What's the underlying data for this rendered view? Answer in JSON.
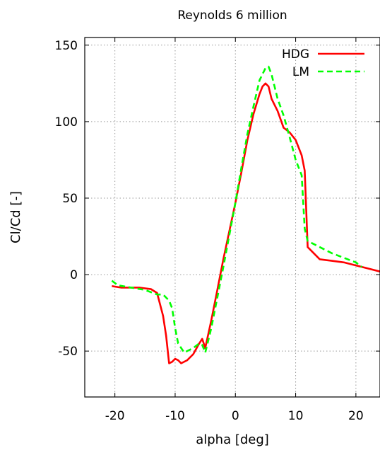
{
  "chart_data": {
    "type": "line",
    "title": "Reynolds 6 million",
    "xlabel": "alpha [deg]",
    "ylabel": "Cl/Cd [-]",
    "xlim": [
      -25,
      24
    ],
    "ylim": [
      -80,
      155
    ],
    "xticks": [
      -20,
      -10,
      0,
      10,
      20
    ],
    "yticks": [
      -50,
      0,
      50,
      100,
      150
    ],
    "grid": true,
    "legend_position": "top-right",
    "series": [
      {
        "name": "HDG",
        "color": "#ff0000",
        "dash": "solid",
        "x": [
          -20.5,
          -19,
          -16,
          -14,
          -13,
          -12,
          -11.5,
          -11,
          -10.5,
          -10,
          -9.5,
          -9,
          -8,
          -7,
          -6,
          -5.5,
          -5,
          -4,
          -3,
          -2,
          0,
          1,
          2,
          3,
          4,
          4.5,
          5,
          5.5,
          6,
          7,
          8,
          9,
          10,
          11,
          11.5,
          12,
          14,
          16,
          18,
          20,
          22,
          24
        ],
        "y": [
          -7.5,
          -8.5,
          -8.5,
          -9.5,
          -12,
          -27,
          -40,
          -58,
          -57,
          -55,
          -56,
          -58,
          -56,
          -52,
          -45,
          -42,
          -48,
          -30,
          -10,
          10,
          47,
          67,
          88,
          105,
          118,
          123,
          125,
          123,
          115,
          107,
          96,
          93,
          88,
          78,
          68,
          18,
          10,
          9,
          8,
          6,
          4,
          2
        ]
      },
      {
        "name": "LM",
        "color": "#00ff00",
        "dash": "dashed",
        "x": [
          -20.5,
          -19.5,
          -18,
          -15,
          -13,
          -12,
          -11,
          -10.5,
          -10,
          -9.5,
          -9,
          -8.5,
          -8,
          -7,
          -6,
          -5.5,
          -5,
          -4.5,
          -4,
          -3,
          -2,
          0,
          1,
          2,
          3,
          4,
          5,
          5.5,
          6,
          7,
          8,
          9,
          10,
          11,
          11.5,
          12,
          14,
          16,
          18,
          20,
          21
        ],
        "y": [
          -4,
          -7,
          -8,
          -10,
          -13,
          -13,
          -17,
          -22,
          -35,
          -45,
          -48,
          -51,
          -50,
          -48,
          -45,
          -46,
          -51,
          -43,
          -35,
          -15,
          5,
          47,
          70,
          92,
          110,
          127,
          135,
          136,
          131,
          115,
          104,
          90,
          75,
          65,
          30,
          22,
          18,
          14,
          11,
          8,
          5
        ]
      }
    ]
  }
}
